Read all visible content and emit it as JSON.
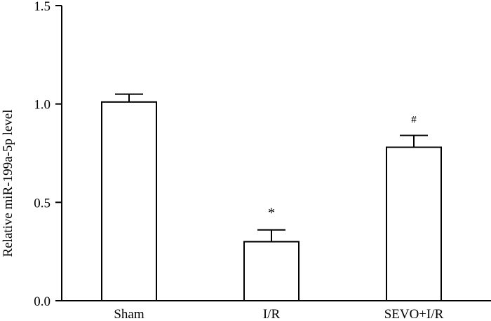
{
  "chart_data": {
    "type": "bar",
    "categories": [
      "Sham",
      "I/R",
      "SEVO+I/R"
    ],
    "values": [
      1.01,
      0.3,
      0.78
    ],
    "errors": [
      0.04,
      0.06,
      0.06
    ],
    "annotations": [
      "",
      "*",
      "#"
    ],
    "ylabel": "Relative miR-199a-5p level",
    "xlabel": "",
    "ylim": [
      0,
      1.5
    ],
    "yticks": [
      "0.0",
      "0.5",
      "1.0",
      "1.5"
    ],
    "ytick_values": [
      0,
      0.5,
      1.0,
      1.5
    ],
    "colors": {
      "bar_fill": "#ffffff",
      "bar_stroke": "#000000",
      "axis": "#000000"
    }
  }
}
